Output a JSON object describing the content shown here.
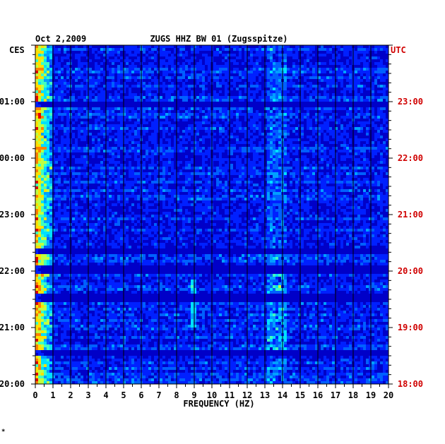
{
  "header": {
    "date": "Oct 2,2009",
    "station": "ZUGS HHZ BW 01 (Zugsspitze)"
  },
  "footer": {
    "mark": "*"
  },
  "colors": {
    "background": "#0000c8",
    "local_text": "#000000",
    "utc_text": "#d00000",
    "grid": "#000000"
  },
  "chart_data": {
    "type": "heatmap",
    "xlabel": "FREQUENCY (HZ)",
    "xlim": [
      0,
      20
    ],
    "x_ticks": [
      "0",
      "1",
      "2",
      "3",
      "4",
      "5",
      "6",
      "7",
      "8",
      "9",
      "10",
      "11",
      "12",
      "13",
      "14",
      "15",
      "16",
      "17",
      "18",
      "19",
      "20"
    ],
    "left_axis": {
      "timezone": "CES",
      "ticks": [
        "01:00",
        "00:00",
        "23:00",
        "22:00",
        "21:00",
        "20:00"
      ]
    },
    "right_axis": {
      "timezone": "UTC",
      "ticks": [
        "23:00",
        "22:00",
        "21:00",
        "20:00",
        "19:00",
        "18:00"
      ]
    },
    "time_span_hours": 6,
    "strong_bands_hz": [
      {
        "from": 0.1,
        "to": 0.9,
        "level": "high"
      },
      {
        "from": 13.2,
        "to": 14.2,
        "level": "medium"
      },
      {
        "from": 8.9,
        "to": 9.1,
        "level": "intermittent"
      }
    ]
  }
}
